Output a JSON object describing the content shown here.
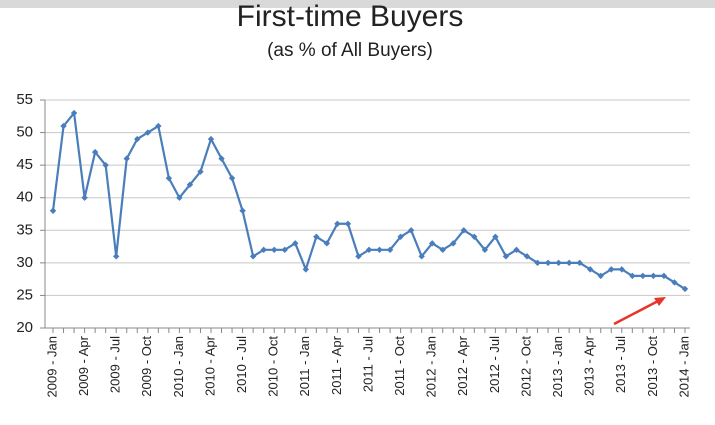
{
  "chart_data": {
    "type": "line",
    "title": "First-time Buyers",
    "subtitle": "(as % of All Buyers)",
    "categories": [
      "2009 - Jan",
      null,
      null,
      "2009 - Apr",
      null,
      null,
      "2009 - Jul",
      null,
      null,
      "2009 - Oct",
      null,
      null,
      "2010 - Jan",
      null,
      null,
      "2010 - Apr",
      null,
      null,
      "2010 - Jul",
      null,
      null,
      "2010 - Oct",
      null,
      null,
      "2011 - Jan",
      null,
      null,
      "2011 - Apr",
      null,
      null,
      "2011 - Jul",
      null,
      null,
      "2011 - Oct",
      null,
      null,
      "2012 - Jan",
      null,
      null,
      "2012 - Apr",
      null,
      null,
      "2012 - Jul",
      null,
      null,
      "2012 - Oct",
      null,
      null,
      "2013 - Jan",
      null,
      null,
      "2013 - Apr",
      null,
      null,
      "2013 - Jul",
      null,
      null,
      "2013 - Oct",
      null,
      null,
      "2014 - Jan"
    ],
    "values": [
      38,
      51,
      53,
      40,
      47,
      45,
      31,
      46,
      49,
      50,
      51,
      43,
      40,
      42,
      44,
      49,
      46,
      43,
      38,
      31,
      32,
      32,
      32,
      33,
      29,
      34,
      33,
      36,
      36,
      31,
      32,
      32,
      32,
      34,
      35,
      31,
      33,
      32,
      33,
      35,
      34,
      32,
      34,
      31,
      32,
      31,
      30,
      30,
      30,
      30,
      30,
      29,
      28,
      29,
      29,
      28,
      28,
      28,
      28,
      27,
      26
    ],
    "color": "#4a7ebb",
    "ylim": [
      20,
      55
    ],
    "yticks": [
      20,
      25,
      30,
      35,
      40,
      45,
      50,
      55
    ],
    "grid": true
  }
}
